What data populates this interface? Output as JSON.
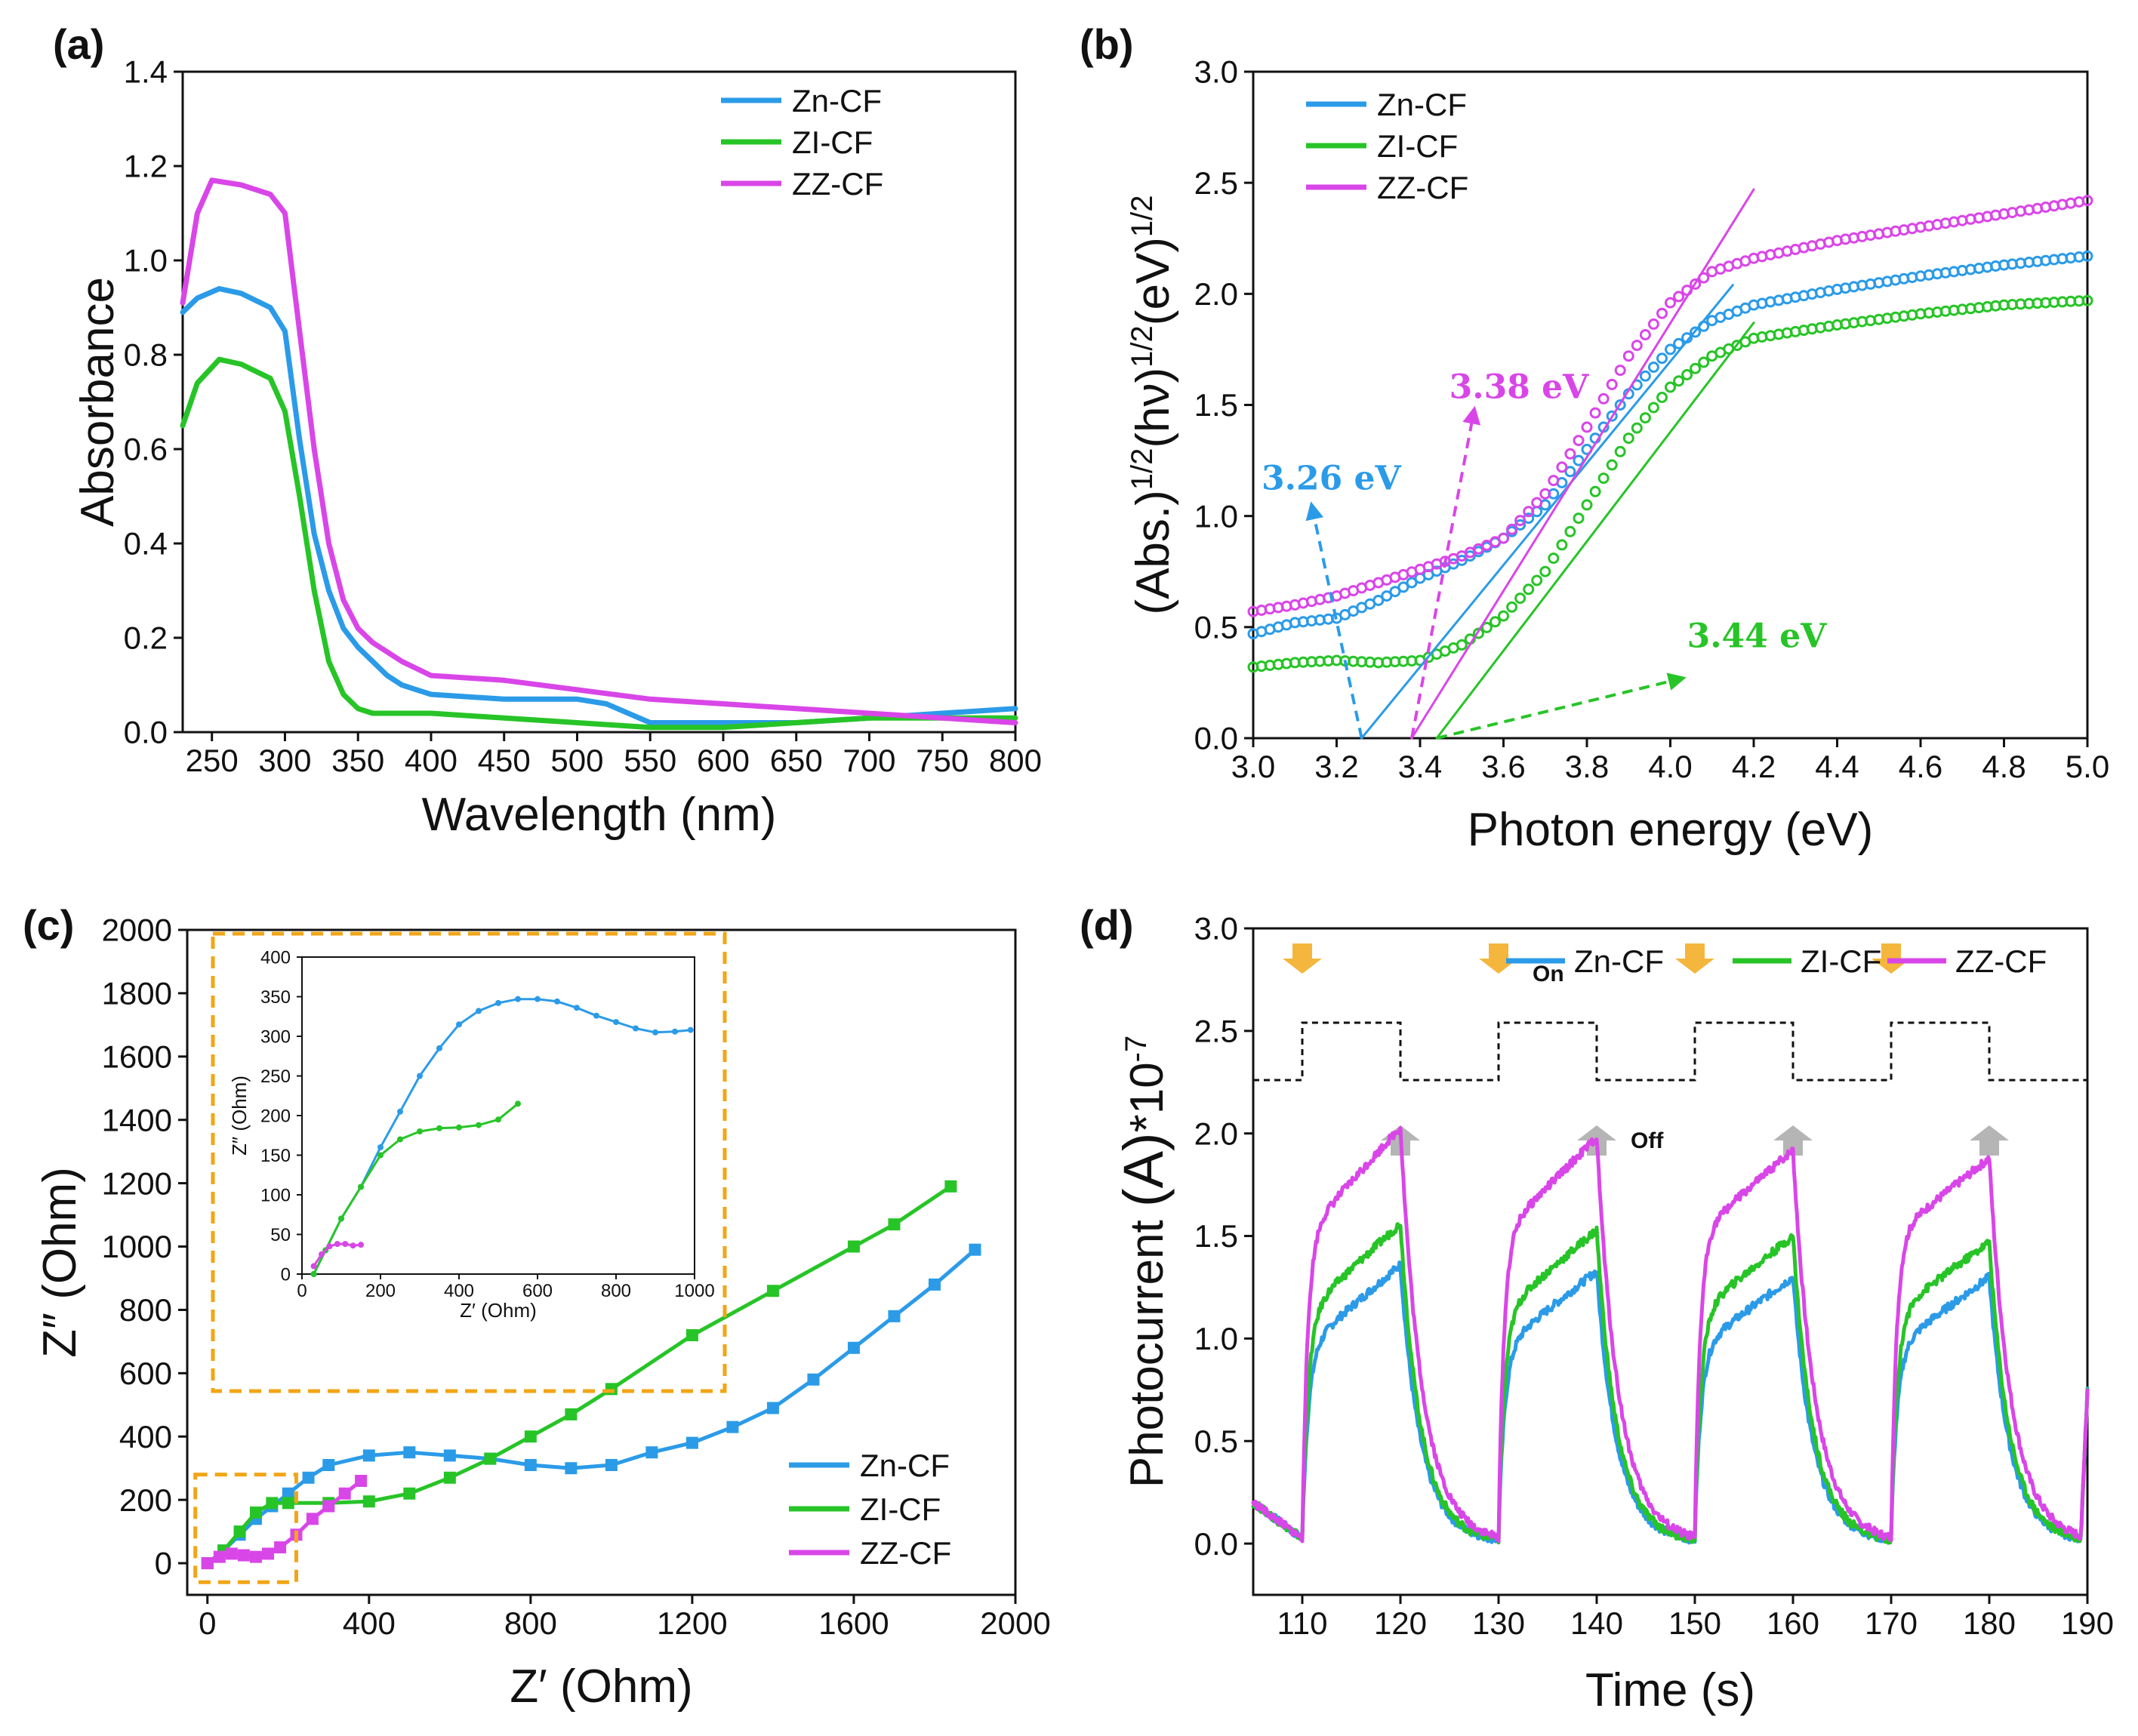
{
  "figure": {
    "description": "Four-panel figure (a)-(d)"
  },
  "colors": {
    "Zn-CF": "#2b9be8",
    "ZI-CF": "#27c427",
    "ZZ-CF": "#d946e8",
    "box": "#f2a516",
    "on_arrow": "#f4b63c",
    "off_arrow": "#b5b5b5"
  },
  "chart_data": [
    {
      "panel": "(a)",
      "type": "line",
      "xlabel": "Wavelength (nm)",
      "ylabel": "Absorbance",
      "xlim": [
        230,
        800
      ],
      "ylim": [
        0,
        1.4
      ],
      "xticks": [
        250,
        300,
        350,
        400,
        450,
        500,
        550,
        600,
        650,
        700,
        750,
        800
      ],
      "yticks": [
        0.0,
        0.2,
        0.4,
        0.6,
        0.8,
        1.0,
        1.2,
        1.4
      ],
      "legend": [
        "Zn-CF",
        "ZI-CF",
        "ZZ-CF"
      ],
      "series": [
        {
          "name": "Zn-CF",
          "x": [
            230,
            240,
            255,
            270,
            290,
            300,
            310,
            320,
            330,
            340,
            350,
            360,
            370,
            380,
            390,
            400,
            450,
            480,
            500,
            520,
            550,
            600,
            650,
            700,
            750,
            800
          ],
          "y": [
            0.89,
            0.92,
            0.94,
            0.93,
            0.9,
            0.85,
            0.62,
            0.42,
            0.3,
            0.22,
            0.18,
            0.15,
            0.12,
            0.1,
            0.09,
            0.08,
            0.07,
            0.07,
            0.07,
            0.06,
            0.02,
            0.02,
            0.02,
            0.03,
            0.04,
            0.05
          ]
        },
        {
          "name": "ZI-CF",
          "x": [
            230,
            240,
            255,
            270,
            290,
            300,
            310,
            320,
            330,
            340,
            350,
            360,
            370,
            390,
            400,
            450,
            500,
            550,
            600,
            650,
            700,
            750,
            800
          ],
          "y": [
            0.65,
            0.74,
            0.79,
            0.78,
            0.75,
            0.68,
            0.5,
            0.3,
            0.15,
            0.08,
            0.05,
            0.04,
            0.04,
            0.04,
            0.04,
            0.03,
            0.02,
            0.01,
            0.01,
            0.02,
            0.03,
            0.03,
            0.03
          ]
        },
        {
          "name": "ZZ-CF",
          "x": [
            230,
            240,
            250,
            270,
            290,
            300,
            310,
            320,
            330,
            340,
            350,
            360,
            380,
            400,
            450,
            500,
            550,
            600,
            650,
            700,
            750,
            800
          ],
          "y": [
            0.91,
            1.1,
            1.17,
            1.16,
            1.14,
            1.1,
            0.85,
            0.6,
            0.4,
            0.28,
            0.22,
            0.19,
            0.15,
            0.12,
            0.11,
            0.09,
            0.07,
            0.06,
            0.05,
            0.04,
            0.03,
            0.02
          ]
        }
      ]
    },
    {
      "panel": "(b)",
      "type": "scatter",
      "xlabel": "Photon energy (eV)",
      "ylabel_parts": [
        "(Abs.)",
        "1/2",
        "(hν)",
        "1/2",
        "(eV)",
        "1/2"
      ],
      "xlim": [
        3.0,
        5.0
      ],
      "ylim": [
        0.0,
        3.0
      ],
      "xticks": [
        3.0,
        3.2,
        3.4,
        3.6,
        3.8,
        4.0,
        4.2,
        4.4,
        4.6,
        4.8,
        5.0
      ],
      "yticks": [
        0.0,
        0.5,
        1.0,
        1.5,
        2.0,
        2.5,
        3.0
      ],
      "legend": [
        "Zn-CF",
        "ZI-CF",
        "ZZ-CF"
      ],
      "series": [
        {
          "name": "Zn-CF",
          "x": [
            3.0,
            3.1,
            3.2,
            3.3,
            3.4,
            3.5,
            3.6,
            3.7,
            3.8,
            3.9,
            4.0,
            4.1,
            4.2,
            4.4,
            4.6,
            4.8,
            5.0
          ],
          "y": [
            0.47,
            0.52,
            0.54,
            0.62,
            0.72,
            0.8,
            0.9,
            1.05,
            1.3,
            1.55,
            1.75,
            1.88,
            1.95,
            2.02,
            2.08,
            2.13,
            2.17
          ]
        },
        {
          "name": "ZI-CF",
          "x": [
            3.0,
            3.1,
            3.2,
            3.3,
            3.4,
            3.5,
            3.6,
            3.7,
            3.8,
            3.9,
            4.0,
            4.1,
            4.2,
            4.4,
            4.6,
            4.8,
            5.0
          ],
          "y": [
            0.32,
            0.34,
            0.35,
            0.34,
            0.35,
            0.42,
            0.55,
            0.75,
            1.05,
            1.35,
            1.58,
            1.72,
            1.8,
            1.86,
            1.91,
            1.95,
            1.97
          ]
        },
        {
          "name": "ZZ-CF",
          "x": [
            3.0,
            3.1,
            3.2,
            3.3,
            3.4,
            3.5,
            3.6,
            3.7,
            3.8,
            3.9,
            4.0,
            4.1,
            4.2,
            4.4,
            4.6,
            4.8,
            5.0
          ],
          "y": [
            0.57,
            0.6,
            0.64,
            0.7,
            0.76,
            0.82,
            0.9,
            1.1,
            1.4,
            1.72,
            1.96,
            2.1,
            2.16,
            2.24,
            2.3,
            2.36,
            2.42
          ]
        }
      ],
      "fit_lines": [
        {
          "name": "Zn-CF",
          "x": [
            3.26,
            4.15
          ],
          "y": [
            0.0,
            2.04
          ]
        },
        {
          "name": "ZI-CF",
          "x": [
            3.44,
            4.2
          ],
          "y": [
            0.0,
            1.87
          ]
        },
        {
          "name": "ZZ-CF",
          "x": [
            3.38,
            4.2
          ],
          "y": [
            0.0,
            2.47
          ]
        }
      ],
      "annotations": [
        {
          "name": "Zn-CF",
          "label": "3.26 eV",
          "from": [
            3.26,
            0.0
          ],
          "to": [
            3.14,
            1.05
          ],
          "text_at": [
            3.02,
            1.12
          ]
        },
        {
          "name": "ZZ-CF",
          "label": "3.38 eV",
          "from": [
            3.38,
            0.0
          ],
          "to": [
            3.53,
            1.48
          ],
          "text_at": [
            3.47,
            1.53
          ]
        },
        {
          "name": "ZI-CF",
          "label": "3.44 eV",
          "from": [
            3.44,
            0.0
          ],
          "to": [
            4.03,
            0.27
          ],
          "text_at": [
            4.04,
            0.41
          ]
        }
      ]
    },
    {
      "panel": "(c)",
      "type": "line",
      "xlabel": "Z′ (Ohm)",
      "ylabel": "Z″ (Ohm)",
      "xlim": [
        -50,
        2000
      ],
      "ylim": [
        -100,
        2000
      ],
      "xticks": [
        0,
        400,
        800,
        1200,
        1600,
        2000
      ],
      "yticks": [
        0,
        200,
        400,
        600,
        800,
        1000,
        1200,
        1400,
        1600,
        1800,
        2000
      ],
      "legend": [
        "Zn-CF",
        "ZI-CF",
        "ZZ-CF"
      ],
      "series": [
        {
          "name": "Zn-CF",
          "x": [
            0,
            40,
            80,
            120,
            160,
            200,
            250,
            300,
            400,
            500,
            600,
            700,
            800,
            900,
            1000,
            1100,
            1200,
            1300,
            1400,
            1500,
            1600,
            1700,
            1800,
            1900
          ],
          "y": [
            0,
            40,
            90,
            140,
            180,
            220,
            270,
            310,
            340,
            350,
            340,
            330,
            310,
            300,
            310,
            350,
            380,
            430,
            490,
            580,
            680,
            780,
            880,
            990
          ]
        },
        {
          "name": "ZI-CF",
          "x": [
            0,
            40,
            80,
            120,
            160,
            200,
            300,
            400,
            500,
            600,
            700,
            800,
            900,
            1000,
            1200,
            1400,
            1600,
            1700,
            1840
          ],
          "y": [
            0,
            40,
            100,
            160,
            190,
            190,
            190,
            195,
            220,
            270,
            330,
            400,
            470,
            550,
            720,
            860,
            1000,
            1070,
            1190
          ]
        },
        {
          "name": "ZZ-CF",
          "x": [
            0,
            30,
            60,
            90,
            120,
            150,
            180,
            220,
            260,
            300,
            340,
            380
          ],
          "y": [
            0,
            20,
            30,
            25,
            20,
            30,
            50,
            90,
            140,
            180,
            220,
            260
          ]
        }
      ],
      "inset": {
        "type": "line",
        "xlabel": "Z′ (Ohm)",
        "ylabel": "Z″ (Ohm)",
        "xlim": [
          0,
          1000
        ],
        "ylim": [
          0,
          400
        ],
        "xticks": [
          0,
          200,
          400,
          600,
          800,
          1000
        ],
        "yticks": [
          0,
          50,
          100,
          150,
          200,
          250,
          300,
          350,
          400
        ],
        "series": [
          {
            "name": "Zn-CF",
            "x": [
              30,
              60,
              100,
              150,
              200,
              250,
              300,
              350,
              400,
              450,
              500,
              550,
              600,
              650,
              700,
              750,
              800,
              850,
              900,
              950,
              990
            ],
            "y": [
              0,
              30,
              70,
              110,
              160,
              205,
              250,
              285,
              315,
              332,
              342,
              347,
              347,
              344,
              336,
              326,
              318,
              310,
              305,
              306,
              308
            ]
          },
          {
            "name": "ZI-CF",
            "x": [
              30,
              60,
              100,
              150,
              200,
              250,
              300,
              350,
              400,
              450,
              500,
              550
            ],
            "y": [
              0,
              30,
              70,
              110,
              150,
              170,
              180,
              184,
              185,
              188,
              195,
              215
            ]
          },
          {
            "name": "ZZ-CF",
            "x": [
              30,
              50,
              70,
              90,
              110,
              130,
              150
            ],
            "y": [
              10,
              25,
              35,
              38,
              38,
              36,
              37
            ]
          }
        ]
      }
    },
    {
      "panel": "(d)",
      "type": "line",
      "xlabel": "Time (s)",
      "ylabel_parts": [
        "Photocurrent ",
        "(A)",
        "*10",
        "-7"
      ],
      "xlim": [
        105,
        190
      ],
      "ylim": [
        -0.25,
        3.0
      ],
      "xticks": [
        110,
        120,
        130,
        140,
        150,
        160,
        170,
        180,
        190
      ],
      "yticks": [
        0.0,
        0.5,
        1.0,
        1.5,
        2.0,
        2.5,
        3.0
      ],
      "legend": [
        "Zn-CF",
        "ZI-CF",
        "ZZ-CF"
      ],
      "on_times": [
        110,
        130,
        150,
        170
      ],
      "off_times": [
        120,
        140,
        160,
        180
      ],
      "light_levels": {
        "low": 2.26,
        "high": 2.54
      },
      "on_label": "On",
      "off_label": "Off",
      "series": [
        {
          "name": "Zn-CF",
          "plateau_start": 0.95,
          "plateau_end": [
            1.36,
            1.33,
            1.3,
            1.3
          ],
          "rise": 1.8,
          "decay": 2.0
        },
        {
          "name": "ZI-CF",
          "plateau_start": 1.12,
          "plateau_end": [
            1.56,
            1.53,
            1.5,
            1.47
          ],
          "rise": 1.8,
          "decay": 2.0
        },
        {
          "name": "ZZ-CF",
          "plateau_start": 1.5,
          "plateau_end": [
            2.03,
            1.98,
            1.92,
            1.88
          ],
          "rise": 1.6,
          "decay": 2.2
        }
      ]
    }
  ]
}
